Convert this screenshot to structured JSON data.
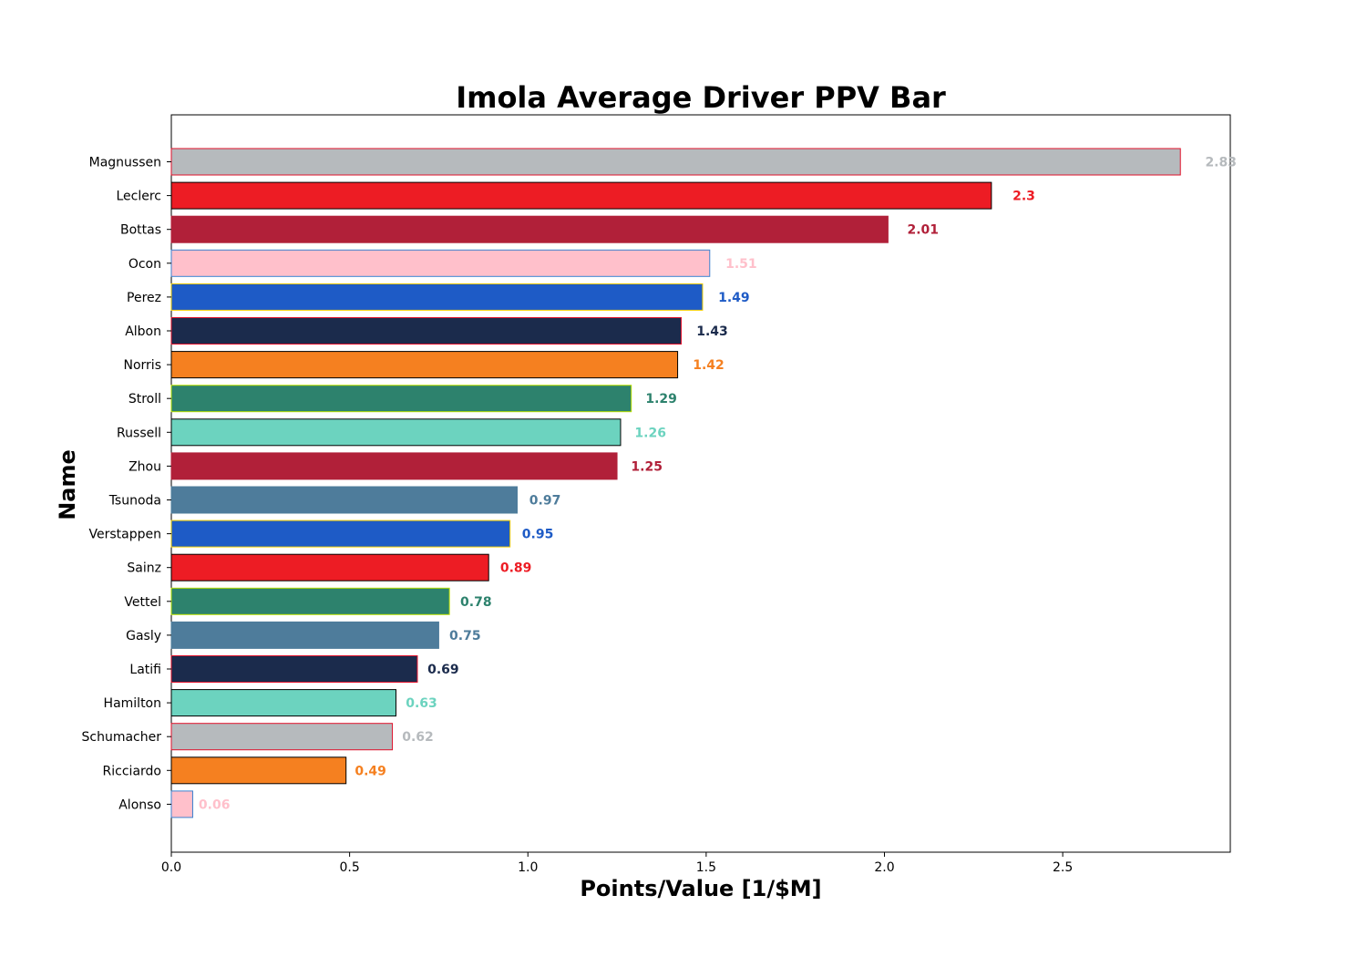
{
  "chart_data": {
    "type": "bar",
    "orientation": "horizontal",
    "title": "Imola Average Driver PPV Bar",
    "xlabel": "Points/Value [1/$M]",
    "ylabel": "Name",
    "xlim": [
      0,
      2.97
    ],
    "x_ticks": [
      "0.0",
      "0.5",
      "1.0",
      "1.5",
      "2.0",
      "2.5"
    ],
    "grid": false,
    "legend": "none",
    "categories": [
      "Magnussen",
      "Leclerc",
      "Bottas",
      "Ocon",
      "Perez",
      "Albon",
      "Norris",
      "Stroll",
      "Russell",
      "Zhou",
      "Tsunoda",
      "Verstappen",
      "Sainz",
      "Vettel",
      "Gasly",
      "Latifi",
      "Hamilton",
      "Schumacher",
      "Ricciardo",
      "Alonso"
    ],
    "values": [
      2.83,
      2.3,
      2.01,
      1.51,
      1.49,
      1.43,
      1.42,
      1.29,
      1.26,
      1.25,
      0.97,
      0.95,
      0.89,
      0.78,
      0.75,
      0.69,
      0.63,
      0.62,
      0.49,
      0.06
    ],
    "value_labels": [
      "2.83",
      "2.3",
      "2.01",
      "1.51",
      "1.49",
      "1.43",
      "1.42",
      "1.29",
      "1.26",
      "1.25",
      "0.97",
      "0.95",
      "0.89",
      "0.78",
      "0.75",
      "0.69",
      "0.63",
      "0.62",
      "0.49",
      "0.06"
    ],
    "fill_colors": [
      "#b6babd",
      "#ed1c24",
      "#b12039",
      "#ffc0cb",
      "#1e5bc6",
      "#1b2b4c",
      "#f58020",
      "#2d826d",
      "#6cd3bf",
      "#b12039",
      "#4e7c9b",
      "#1e5bc6",
      "#ed1c24",
      "#2d826d",
      "#4e7c9b",
      "#1b2b4c",
      "#6cd3bf",
      "#b6babd",
      "#f58020",
      "#ffc0cb"
    ],
    "edge_colors": [
      "#e0102a",
      "#000000",
      "#b12039",
      "#3b82d0",
      "#f5d000",
      "#e0102a",
      "#000000",
      "#b9e000",
      "#000000",
      "#b12039",
      "#4e7c9b",
      "#f5d000",
      "#000000",
      "#b9e000",
      "#4e7c9b",
      "#e0102a",
      "#000000",
      "#e0102a",
      "#000000",
      "#3b82d0"
    ]
  }
}
